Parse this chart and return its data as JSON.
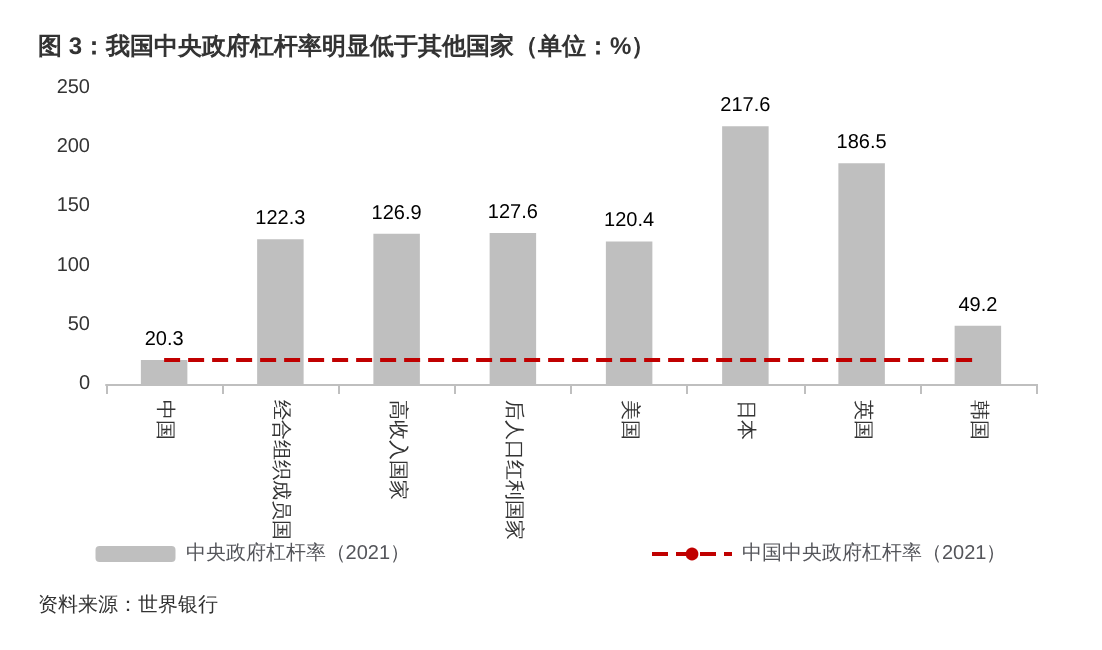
{
  "chart_data": {
    "type": "bar",
    "title": "图 3：我国中央政府杠杆率明显低于其他国家（单位：%）",
    "categories": [
      "中国",
      "经合组织成员国",
      "高收入国家",
      "后人口红利国家",
      "美国",
      "日本",
      "英国",
      "韩国"
    ],
    "series": [
      {
        "name": "中央政府杠杆率（2021）",
        "color": "#bfbfbf",
        "values": [
          20.3,
          122.3,
          126.9,
          127.6,
          120.4,
          217.6,
          186.5,
          49.2
        ],
        "data_labels": true
      },
      {
        "name": "中国中央政府杠杆率（2021）",
        "type": "line",
        "color": "#c00000",
        "line_style": "dashed",
        "values": [
          20.3,
          20.3,
          20.3,
          20.3,
          20.3,
          20.3,
          20.3,
          20.3
        ]
      }
    ],
    "ylim": [
      0,
      250
    ],
    "yticks": [
      0,
      50,
      100,
      150,
      200,
      250
    ],
    "grid": false,
    "legend": "bottom",
    "marker": "none",
    "annotations": [
      "资料来源：世界银行"
    ]
  }
}
